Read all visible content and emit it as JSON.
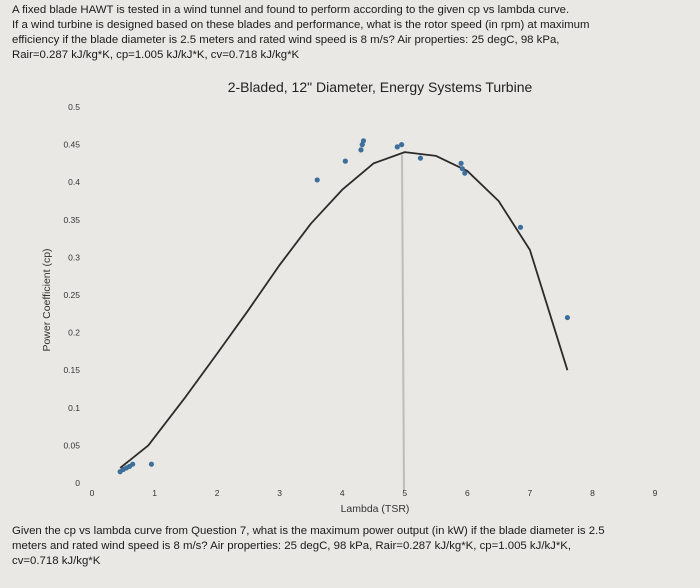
{
  "question_top": [
    "A fixed blade HAWT is tested in a wind tunnel and found to perform according to the given cp vs lambda curve.",
    "If a wind turbine is designed based on these blades and performance, what is the rotor speed (in rpm) at maximum",
    "efficiency if the blade diameter is 2.5 meters and rated wind speed is 8 m/s? Air properties: 25 degC, 98 kPa,",
    "Rair=0.287 kJ/kg*K, cp=1.005 kJ/kJ*K, cv=0.718 kJ/kg*K"
  ],
  "question_bottom": [
    "Given the cp vs lambda curve from Question 7, what is the maximum power output (in kW) if the blade diameter is 2.5",
    "meters and rated wind speed is 8 m/s? Air properties: 25 degC, 98 kPa, Rair=0.287 kJ/kg*K, cp=1.005 kJ/kJ*K,",
    "cv=0.718 kJ/kg*K"
  ],
  "chart_data": {
    "type": "scatter",
    "title": "2-Bladed, 12\" Diameter, Energy Systems Turbine",
    "xlabel": "Lambda (TSR)",
    "ylabel": "Power Coefficient (cp)",
    "xlim": [
      0,
      9
    ],
    "ylim": [
      0,
      0.5
    ],
    "x_ticks": [
      "0",
      "1",
      "2",
      "3",
      "4",
      "5",
      "6",
      "7",
      "8",
      "9"
    ],
    "y_ticks": [
      "0",
      "0.05",
      "0.1",
      "0.15",
      "0.2",
      "0.25",
      "0.3",
      "0.35",
      "0.4",
      "0.45",
      "0.5"
    ],
    "grid": false,
    "legend": "none",
    "series": [
      {
        "kind": "points",
        "points": [
          [
            0.45,
            0.015
          ],
          [
            0.5,
            0.018
          ],
          [
            0.55,
            0.02
          ],
          [
            0.6,
            0.022
          ],
          [
            0.65,
            0.025
          ],
          [
            0.95,
            0.025
          ],
          [
            3.6,
            0.403
          ],
          [
            4.05,
            0.428
          ],
          [
            4.3,
            0.443
          ],
          [
            4.32,
            0.45
          ],
          [
            4.34,
            0.455
          ],
          [
            4.88,
            0.447
          ],
          [
            4.95,
            0.45
          ],
          [
            5.25,
            0.432
          ],
          [
            5.9,
            0.425
          ],
          [
            5.92,
            0.418
          ],
          [
            5.96,
            0.412
          ],
          [
            6.85,
            0.34
          ],
          [
            7.6,
            0.22
          ]
        ]
      },
      {
        "kind": "trendline",
        "points": [
          [
            0.45,
            0.02
          ],
          [
            0.9,
            0.05
          ],
          [
            1.5,
            0.115
          ],
          [
            2.0,
            0.172
          ],
          [
            2.5,
            0.23
          ],
          [
            3.0,
            0.29
          ],
          [
            3.5,
            0.345
          ],
          [
            4.0,
            0.39
          ],
          [
            4.5,
            0.425
          ],
          [
            5.0,
            0.44
          ],
          [
            5.5,
            0.435
          ],
          [
            6.0,
            0.415
          ],
          [
            6.5,
            0.375
          ],
          [
            7.0,
            0.31
          ],
          [
            7.6,
            0.15
          ]
        ]
      }
    ]
  },
  "colors": {
    "background": "#e9e8e4",
    "point": "#3d6f9a",
    "trendline": "#2b2b2b",
    "text": "#1a1a1a"
  }
}
